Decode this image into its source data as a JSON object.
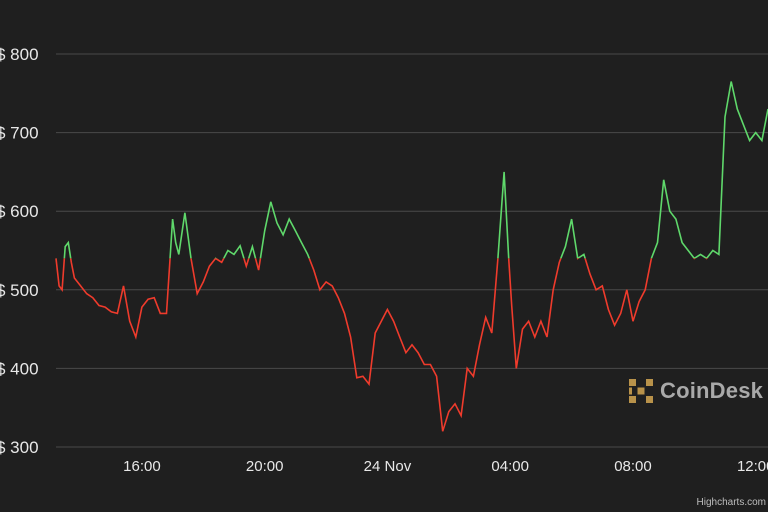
{
  "chart_data": {
    "type": "line",
    "title": "",
    "xlabel": "",
    "ylabel": "",
    "y_tick_labels": [
      "$ 300",
      "$ 400",
      "$ 500",
      "$ 600",
      "$ 700",
      "$ 800"
    ],
    "y_ticks": [
      300,
      400,
      500,
      600,
      700,
      800
    ],
    "ylim": [
      300,
      800
    ],
    "x_tick_labels": [
      "16:00",
      "20:00",
      "24 Nov",
      "04:00",
      "08:00",
      "12:00"
    ],
    "x_ticks_hours": [
      16,
      20,
      24,
      28,
      32,
      36
    ],
    "xlim_hours": [
      13.2,
      36.4
    ],
    "baseline": 540,
    "colors": {
      "above": "#5fd86b",
      "below": "#ef3b2c",
      "grid": "#4a4a4a",
      "background": "#1f1f1f",
      "text": "#e8e8e8"
    },
    "grid": true,
    "series": [
      {
        "x_hours": [
          13.2,
          13.3,
          13.4,
          13.5,
          13.6,
          13.7,
          13.8,
          14.0,
          14.2,
          14.4,
          14.6,
          14.8,
          15.0,
          15.2,
          15.4,
          15.6,
          15.8,
          16.0,
          16.2,
          16.4,
          16.6,
          16.8,
          17.0,
          17.1,
          17.2,
          17.4,
          17.6,
          17.8,
          18.0,
          18.2,
          18.4,
          18.6,
          18.8,
          19.0,
          19.2,
          19.4,
          19.6,
          19.8,
          20.0,
          20.2,
          20.4,
          20.6,
          20.8,
          21.0,
          21.2,
          21.4,
          21.6,
          21.8,
          22.0,
          22.2,
          22.4,
          22.6,
          22.8,
          23.0,
          23.2,
          23.4,
          23.6,
          23.8,
          24.0,
          24.2,
          24.4,
          24.6,
          24.8,
          25.0,
          25.2,
          25.4,
          25.6,
          25.8,
          26.0,
          26.2,
          26.4,
          26.6,
          26.8,
          27.0,
          27.2,
          27.4,
          27.6,
          27.8,
          27.95,
          28.05,
          28.2,
          28.4,
          28.6,
          28.8,
          29.0,
          29.2,
          29.4,
          29.6,
          29.8,
          30.0,
          30.2,
          30.4,
          30.6,
          30.8,
          31.0,
          31.2,
          31.4,
          31.6,
          31.8,
          32.0,
          32.2,
          32.4,
          32.6,
          32.8,
          33.0,
          33.2,
          33.4,
          33.6,
          33.8,
          34.0,
          34.2,
          34.4,
          34.6,
          34.8,
          35.0,
          35.2,
          35.4,
          35.6,
          35.8,
          36.0,
          36.2,
          36.4
        ],
        "y": [
          540,
          505,
          500,
          555,
          560,
          535,
          515,
          505,
          495,
          490,
          480,
          478,
          472,
          470,
          505,
          460,
          440,
          478,
          488,
          490,
          470,
          470,
          590,
          560,
          545,
          598,
          540,
          495,
          510,
          530,
          540,
          535,
          550,
          545,
          556,
          530,
          555,
          525,
          575,
          612,
          585,
          570,
          590,
          575,
          560,
          545,
          525,
          500,
          510,
          505,
          490,
          470,
          440,
          388,
          390,
          380,
          445,
          460,
          475,
          460,
          440,
          420,
          430,
          420,
          405,
          405,
          390,
          320,
          345,
          355,
          340,
          400,
          390,
          430,
          465,
          445,
          540,
          650,
          540,
          480,
          400,
          450,
          460,
          440,
          460,
          440,
          500,
          535,
          555,
          590,
          540,
          545,
          520,
          500,
          505,
          475,
          455,
          470,
          500,
          460,
          485,
          500,
          540,
          560,
          640,
          600,
          590,
          560,
          550,
          540,
          545,
          540,
          550,
          545,
          720,
          765,
          730,
          710,
          690,
          700,
          690,
          730
        ]
      }
    ]
  },
  "logo_text": "CoinDesk",
  "credit": "Highcharts.com"
}
